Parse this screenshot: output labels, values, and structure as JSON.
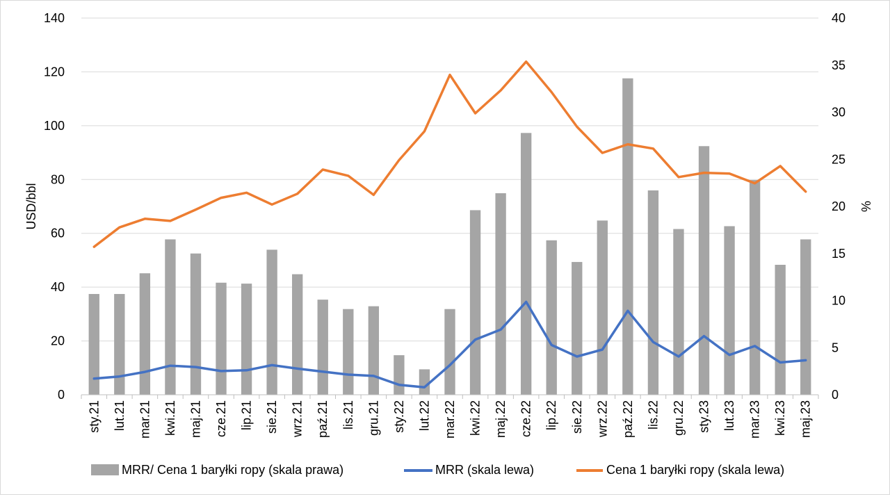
{
  "chart_data": {
    "type": "bar+line",
    "categories": [
      "sty.21",
      "lut.21",
      "mar.21",
      "kwi.21",
      "maj.21",
      "cze.21",
      "lip.21",
      "sie.21",
      "wrz.21",
      "paź.21",
      "lis.21",
      "gru.21",
      "sty.22",
      "lut.22",
      "mar.22",
      "kwi.22",
      "maj.22",
      "cze.22",
      "lip.22",
      "sie.22",
      "wrz.22",
      "paź.22",
      "lis.22",
      "gru.22",
      "sty.23",
      "lut.23",
      "mar.23",
      "kwi.23",
      "maj.23"
    ],
    "series": [
      {
        "name": "MRR/ Cena 1 baryłki ropy (skala prawa)",
        "type": "bar",
        "axis": "right",
        "color": "#a5a5a5",
        "values": [
          10.7,
          10.7,
          12.9,
          16.5,
          15.0,
          11.9,
          11.8,
          15.4,
          12.8,
          10.1,
          9.1,
          9.4,
          4.2,
          2.7,
          9.1,
          19.6,
          21.4,
          27.8,
          16.4,
          14.1,
          18.5,
          33.6,
          21.7,
          17.6,
          26.4,
          17.9,
          22.8,
          13.8,
          16.5
        ]
      },
      {
        "name": "MRR (skala lewa)",
        "type": "line",
        "axis": "left",
        "color": "#4472c4",
        "values": [
          6.0,
          6.8,
          8.5,
          10.8,
          10.3,
          8.8,
          9.1,
          11.0,
          9.7,
          8.6,
          7.5,
          7.0,
          3.7,
          2.8,
          11.0,
          20.5,
          24.2,
          34.5,
          18.5,
          14.2,
          16.8,
          31.2,
          19.6,
          14.2,
          21.8,
          14.8,
          18.1,
          12.0,
          12.8
        ]
      },
      {
        "name": "Cena 1 baryłki ropy (skala lewa)",
        "type": "line",
        "axis": "left",
        "color": "#ed7d31",
        "values": [
          55.0,
          62.2,
          65.4,
          64.6,
          68.8,
          73.2,
          75.1,
          70.7,
          74.7,
          83.7,
          81.4,
          74.3,
          87.2,
          97.9,
          118.9,
          104.6,
          113.1,
          123.8,
          112.5,
          99.6,
          89.9,
          93.1,
          91.5,
          80.9,
          82.5,
          82.2,
          78.6,
          85.0,
          75.5
        ]
      }
    ],
    "left_axis": {
      "label": "USD/bbl",
      "min": 0,
      "max": 140,
      "step": 20,
      "ticks": [
        "0",
        "20",
        "40",
        "60",
        "80",
        "100",
        "120",
        "140"
      ]
    },
    "right_axis": {
      "label": "%",
      "min": 0,
      "max": 40,
      "step": 5,
      "ticks": [
        "0",
        "5",
        "10",
        "15",
        "20",
        "25",
        "30",
        "35",
        "40"
      ]
    },
    "grid": true,
    "legend_position": "bottom"
  }
}
